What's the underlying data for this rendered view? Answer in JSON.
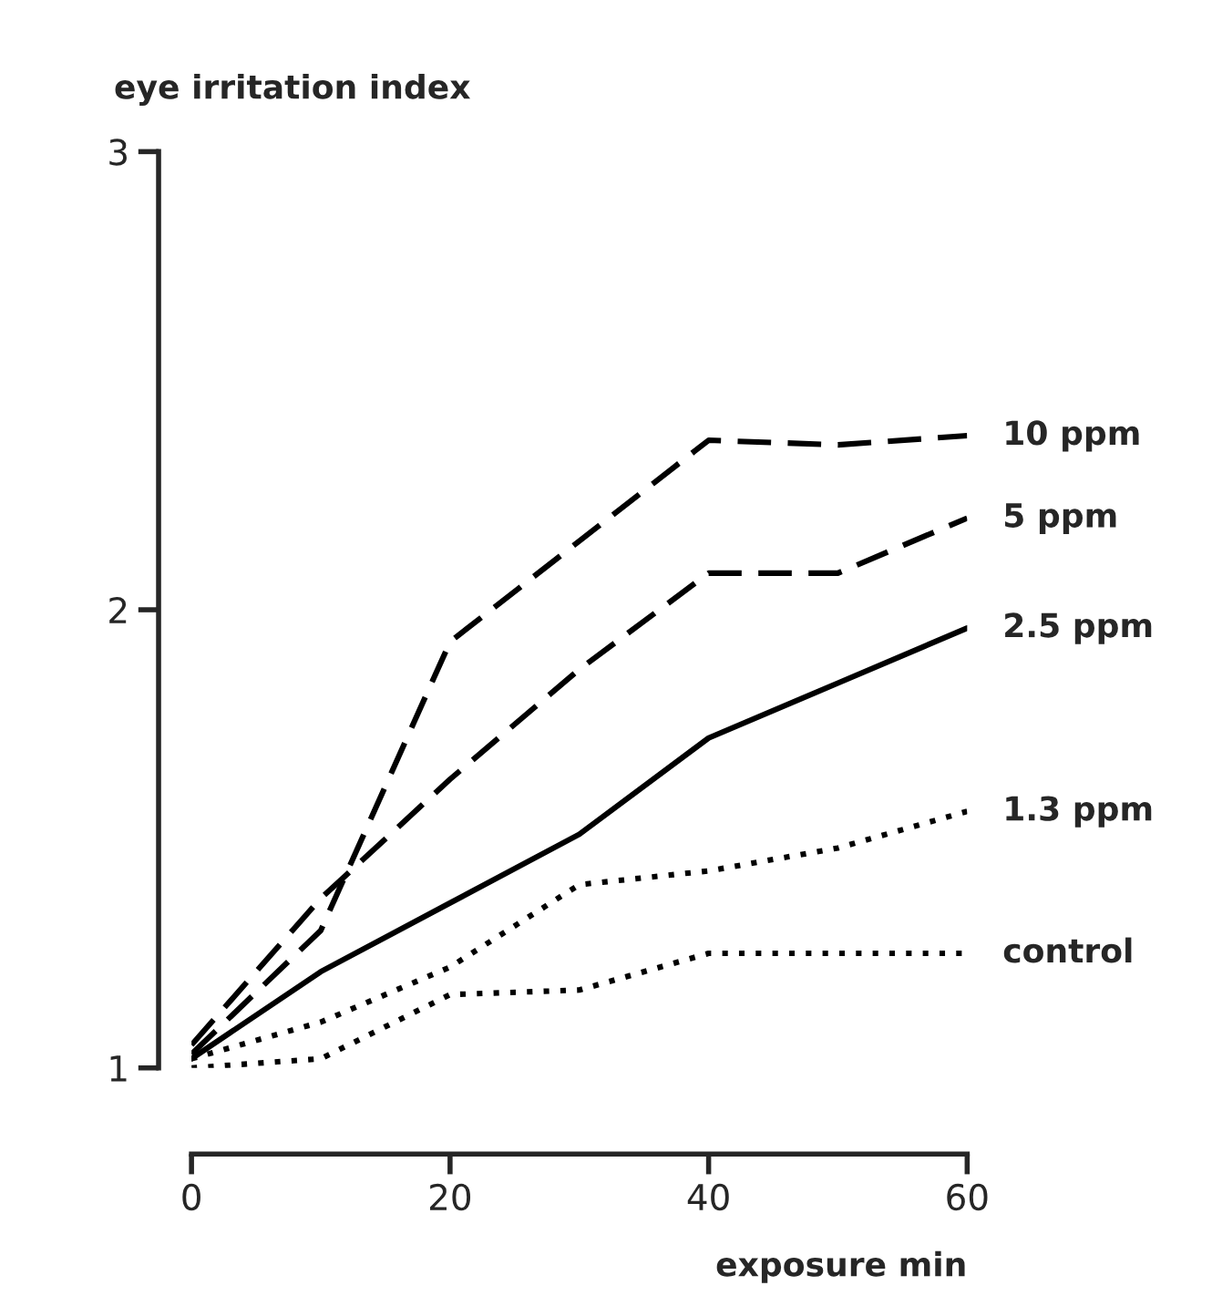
{
  "chart_data": {
    "type": "line",
    "xlabel": "exposure min",
    "ylabel": "eye irritation index",
    "x": [
      0,
      10,
      20,
      30,
      40,
      50,
      60
    ],
    "series": [
      {
        "name": "10 ppm",
        "color": "#000000",
        "line_style": "dashed",
        "values": [
          1.03,
          1.3,
          1.93,
          2.15,
          2.37,
          2.36,
          2.38
        ]
      },
      {
        "name": "5 ppm",
        "color": "#000000",
        "line_style": "dashed",
        "values": [
          1.05,
          1.37,
          1.63,
          1.87,
          2.08,
          2.08,
          2.2
        ]
      },
      {
        "name": "2.5 ppm",
        "color": "#000000",
        "line_style": "solid",
        "values": [
          1.02,
          1.21,
          1.36,
          1.51,
          1.72,
          1.84,
          1.96
        ]
      },
      {
        "name": "1.3 ppm",
        "color": "#000000",
        "line_style": "dotted",
        "values": [
          1.02,
          1.1,
          1.22,
          1.4,
          1.43,
          1.48,
          1.56
        ]
      },
      {
        "name": "control",
        "color": "#000000",
        "line_style": "dotted",
        "values": [
          1.0,
          1.02,
          1.16,
          1.17,
          1.25,
          1.25,
          1.25
        ]
      }
    ],
    "xlim": [
      0,
      60
    ],
    "ylim": [
      1,
      3
    ],
    "xticks": [
      0,
      20,
      40,
      60
    ],
    "yticks": [
      1,
      2,
      3
    ],
    "grid": false,
    "legend": false,
    "marker": "none"
  }
}
